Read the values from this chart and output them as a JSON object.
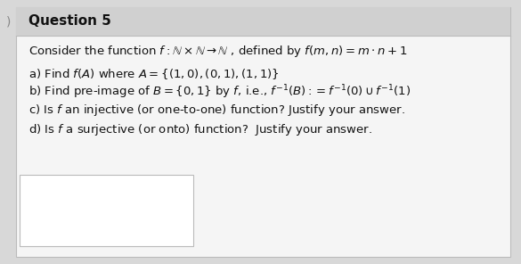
{
  "title": "Question 5",
  "bg_color": "#d8d8d8",
  "header_bg": "#d0d0d0",
  "content_bg": "#e8e8e8",
  "box_color": "#ffffff",
  "border_color": "#bbbbbb",
  "text_color": "#111111",
  "title_fontsize": 11,
  "body_fontsize": 9.5,
  "line0": "Consider the function $f : \\mathbb{N} \\times \\mathbb{N} \\rightarrow \\mathbb{N}$ , defined by $f(m, n) = m \\cdot n + 1$",
  "line0_plain": "Consider the function f : N × N → N , defined by f(m, n) = m·n + 1",
  "line1_plain": "a) Find f(A) where A = {(1, 0), (0, 1), (1, 1)}",
  "line2_plain": "b) Find pre-image of B = {0, 1} by f, i.e., f⁻¹(B) := f⁻¹(0) ∪ f⁻¹(1)",
  "line3_plain": "c) Is f an injective (or one-to-one) function? Justify your answer.",
  "line4_plain": "d) Is f a surjective (or onto) function?  Justify your answer.",
  "figwidth": 5.85,
  "figheight": 2.96,
  "dpi": 100
}
